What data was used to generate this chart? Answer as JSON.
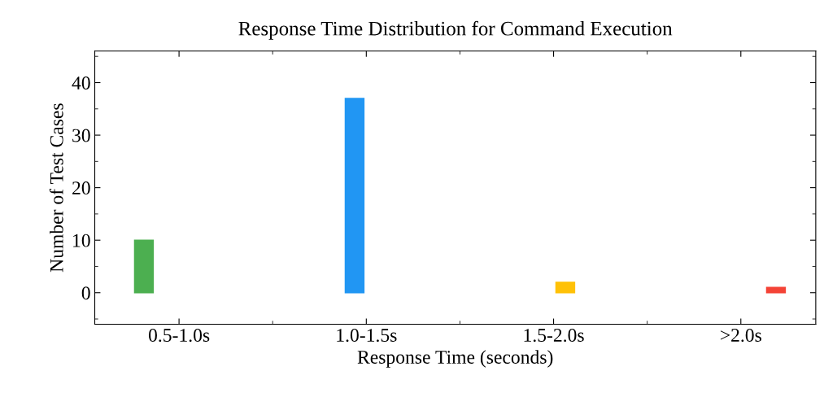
{
  "chart_data": {
    "type": "bar",
    "title": "Response Time Distribution for Command Execution",
    "xlabel": "Response Time (seconds)",
    "ylabel": "Number of Test Cases",
    "categories": [
      "0.5-1.0s",
      "1.0-1.5s",
      "1.5-2.0s",
      ">2.0s"
    ],
    "series": [
      {
        "color": "#4caf50",
        "values": [
          10,
          null,
          null,
          null
        ]
      },
      {
        "color": "#2196f3",
        "values": [
          null,
          37,
          null,
          null
        ]
      },
      {
        "color": "#ffc107",
        "values": [
          null,
          null,
          2,
          null
        ]
      },
      {
        "color": "#f44336",
        "values": [
          null,
          null,
          null,
          1
        ]
      }
    ],
    "ylim": [
      -6,
      46
    ],
    "yticks": [
      0,
      10,
      20,
      30,
      40
    ],
    "grid": false
  }
}
